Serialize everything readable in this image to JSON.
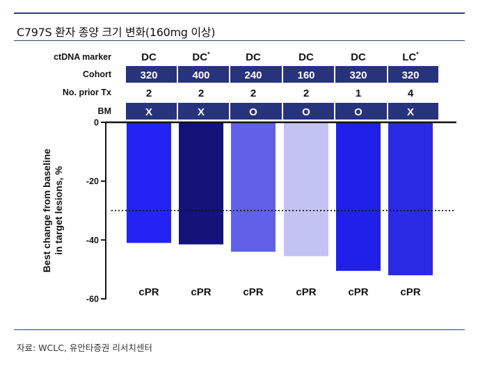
{
  "title": "C797S 환자 종양 크기 변화(160mg 이상)",
  "source": "자료: WCLC, 유안타증권 리서치센터",
  "table": {
    "row_labels": [
      "ctDNA marker",
      "Cohort",
      "No. prior Tx",
      "BM"
    ],
    "ctdna_marker": [
      "DC",
      "DC*",
      "DC",
      "DC",
      "DC",
      "LC*"
    ],
    "cohort": [
      "320",
      "400",
      "240",
      "160",
      "320",
      "320"
    ],
    "prior_tx": [
      "2",
      "2",
      "2",
      "2",
      "1",
      "4"
    ],
    "bm": [
      "X",
      "X",
      "O",
      "O",
      "O",
      "X"
    ]
  },
  "colors": {
    "band_fill": "#28337e",
    "band_text": "#ffffff",
    "rule": "#2d3f6a"
  },
  "chart_data": {
    "type": "bar",
    "categories": [
      "1",
      "2",
      "3",
      "4",
      "5",
      "6"
    ],
    "values": [
      -41,
      -41.5,
      -44,
      -45.5,
      -50.5,
      -52
    ],
    "bar_colors": [
      "#2323f5",
      "#13137a",
      "#6060e9",
      "#c3c3f3",
      "#2020e8",
      "#2a2ae4"
    ],
    "response_labels": [
      "cPR",
      "cPR",
      "cPR",
      "cPR",
      "cPR",
      "cPR"
    ],
    "ylabel": "Best change from baseline in target lesions, %",
    "ylabel_lines": [
      "Best change from baseline",
      "in target lesions, %"
    ],
    "yticks": [
      0,
      -20,
      -40,
      -60
    ],
    "ylim": [
      -60,
      0
    ],
    "reference_line": -30,
    "xlabel": "",
    "legend": "none"
  }
}
